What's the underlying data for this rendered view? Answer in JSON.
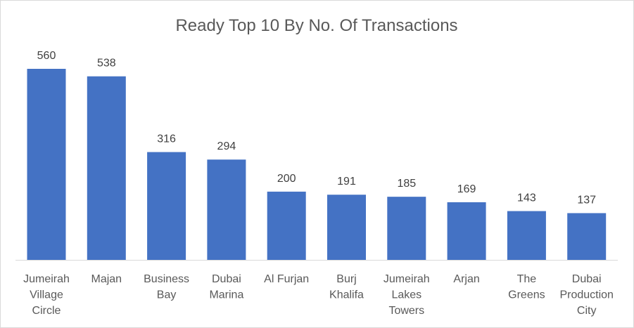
{
  "chart_data": {
    "type": "bar",
    "title": "Ready Top 10 By No. Of Transactions",
    "categories": [
      "Jumeirah Village Circle",
      "Majan",
      "Business Bay",
      "Dubai Marina",
      "Al Furjan",
      "Burj Khalifa",
      "Jumeirah Lakes Towers",
      "Arjan",
      "The Greens",
      "Dubai Production City"
    ],
    "category_lines": [
      [
        "Jumeirah",
        "Village",
        "Circle"
      ],
      [
        "Majan"
      ],
      [
        "Business",
        "Bay"
      ],
      [
        "Dubai",
        "Marina"
      ],
      [
        "Al Furjan"
      ],
      [
        "Burj",
        "Khalifa"
      ],
      [
        "Jumeirah",
        "Lakes",
        "Towers"
      ],
      [
        "Arjan"
      ],
      [
        "The",
        "Greens"
      ],
      [
        "Dubai",
        "Production",
        "City"
      ]
    ],
    "values": [
      560,
      538,
      316,
      294,
      200,
      191,
      185,
      169,
      143,
      137
    ],
    "xlabel": "",
    "ylabel": "",
    "ylim": [
      0,
      560
    ],
    "grid": false,
    "legend": "none",
    "bar_color": "#4472C4"
  }
}
